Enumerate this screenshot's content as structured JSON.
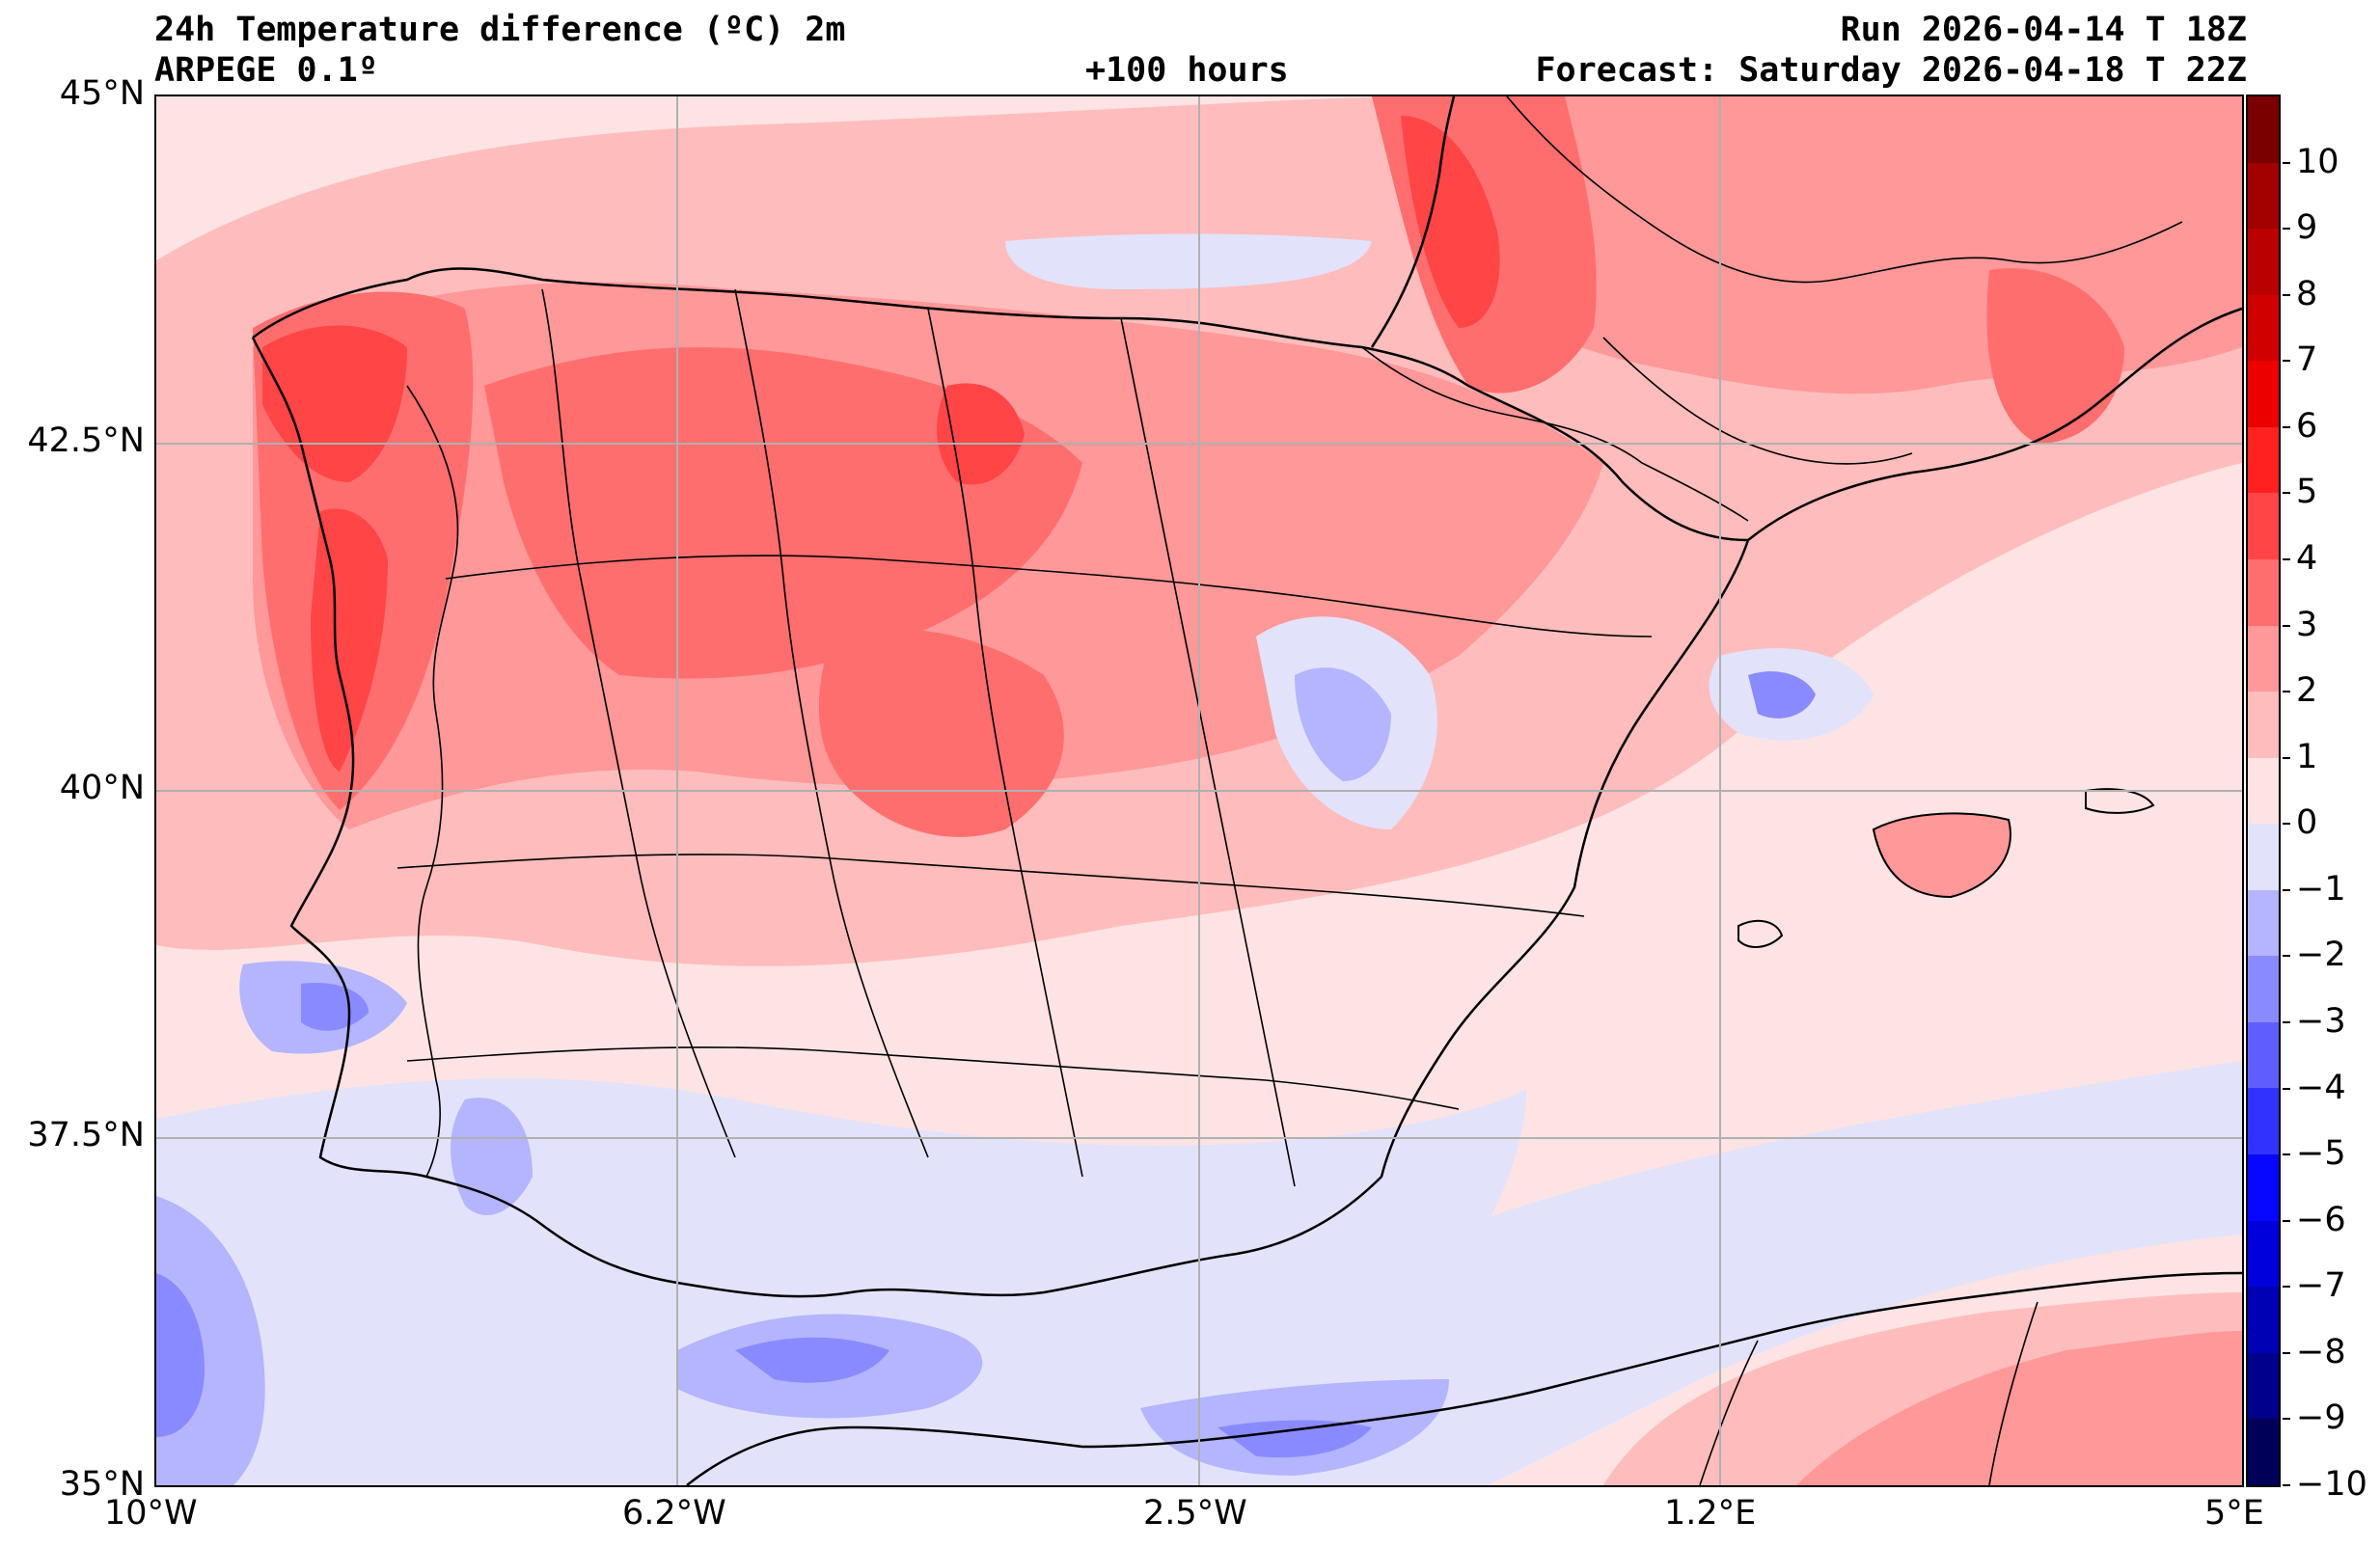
{
  "title": {
    "line1_left": "24h Temperature difference (ºC) 2m",
    "line2_left": "ARPEGE 0.1º",
    "line2_center": "+100 hours",
    "line1_right": "Run 2026-04-14 T 18Z",
    "line2_right": "Forecast: Saturday 2026-04-18 T 22Z"
  },
  "axes": {
    "lat_labels": [
      "45°N",
      "42.5°N",
      "40°N",
      "37.5°N",
      "35°N"
    ],
    "lon_labels": [
      "10°W",
      "6.2°W",
      "2.5°W",
      "1.2°E",
      "5°E"
    ]
  },
  "colorbar": {
    "labels": [
      "10",
      "9",
      "8",
      "7",
      "6",
      "5",
      "4",
      "3",
      "2",
      "1",
      "0",
      "−1",
      "−2",
      "−3",
      "−4",
      "−5",
      "−6",
      "−7",
      "−8",
      "−9",
      "−10"
    ],
    "colors": [
      "#7a0000",
      "#a30000",
      "#bb0000",
      "#d00000",
      "#ec0000",
      "#ff2020",
      "#ff4545",
      "#ff6e6e",
      "#ff9898",
      "#ffbcbc",
      "#fde3e3",
      "#e2e2fb",
      "#b4b4ff",
      "#8a8aff",
      "#5e5eff",
      "#3232ff",
      "#0707ff",
      "#0000dc",
      "#0000b4",
      "#00008c",
      "#000058"
    ]
  },
  "map_colors": {
    "sea": "#fde3e3",
    "light_red": "#ffbcbc",
    "mid_red": "#ff9898",
    "red": "#ff6e6e",
    "strong_red": "#ff4545",
    "light_blue": "#e2e2fb",
    "blue": "#b4b4ff",
    "mid_blue": "#8a8aff",
    "deep_blue": "#5e5eff"
  }
}
